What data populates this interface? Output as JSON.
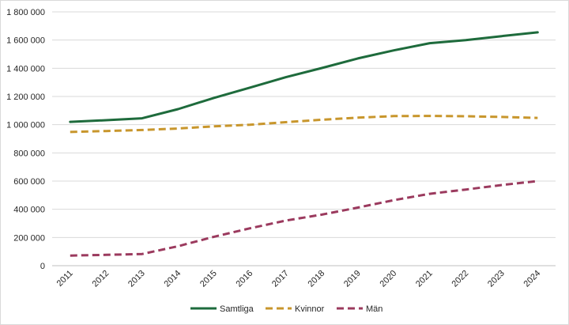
{
  "chart_data": {
    "type": "line",
    "title": "",
    "xlabel": "",
    "ylabel": "",
    "categories": [
      "2011",
      "2012",
      "2013",
      "2014",
      "2015",
      "2016",
      "2017",
      "2018",
      "2019",
      "2020",
      "2021",
      "2022",
      "2023",
      "2024"
    ],
    "ylim": [
      0,
      1800000
    ],
    "yticks": [
      0,
      200000,
      400000,
      600000,
      800000,
      1000000,
      1200000,
      1400000,
      1600000,
      1800000
    ],
    "ytick_labels": [
      "0",
      "200 000",
      "400 000",
      "600 000",
      "800 000",
      "1 000 000",
      "1 200 000",
      "1 400 000",
      "1 600 000",
      "1 800 000"
    ],
    "grid": true,
    "legend_position": "bottom",
    "series": [
      {
        "name": "Samtliga",
        "color": "#1e6b3c",
        "style": "solid",
        "values": [
          1020000,
          1032000,
          1045000,
          1110000,
          1190000,
          1263000,
          1337000,
          1402000,
          1470000,
          1527000,
          1578000,
          1600000,
          1628000,
          1655000
        ]
      },
      {
        "name": "Kvinnor",
        "color": "#c8962c",
        "style": "dashed",
        "values": [
          948000,
          955000,
          962000,
          973000,
          988000,
          1000000,
          1018000,
          1035000,
          1050000,
          1061000,
          1062000,
          1060000,
          1055000,
          1048000
        ]
      },
      {
        "name": "Män",
        "color": "#9b3a5e",
        "style": "dashed",
        "values": [
          72000,
          77000,
          83000,
          138000,
          205000,
          265000,
          320000,
          362000,
          412000,
          465000,
          510000,
          540000,
          572000,
          600000
        ]
      }
    ]
  }
}
